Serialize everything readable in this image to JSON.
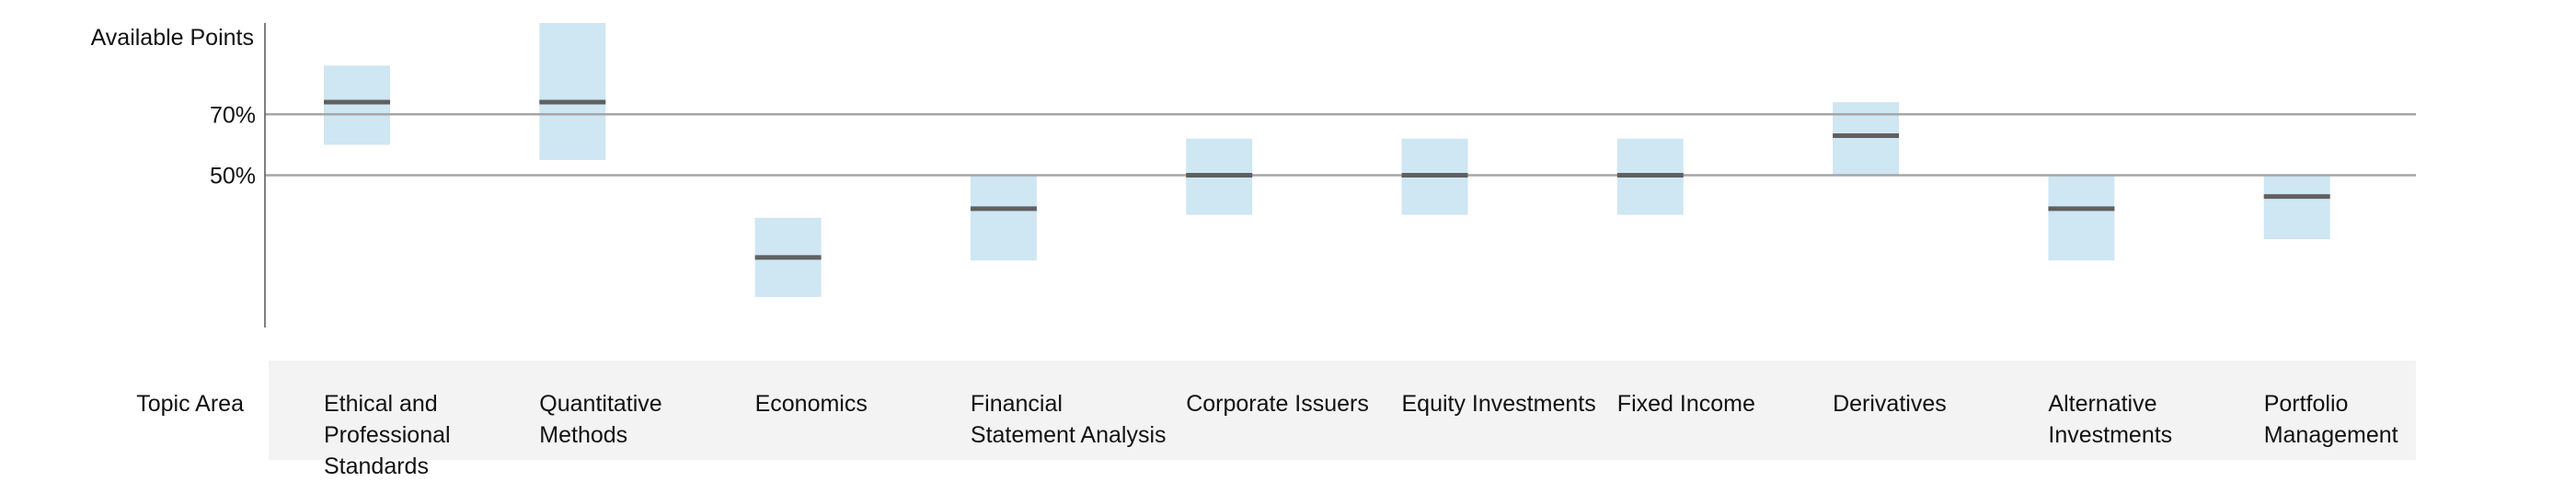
{
  "chart_data": {
    "type": "range-bar",
    "ylabel": "Available Points",
    "xlabel": "Topic Area",
    "y_reference_lines": [
      50,
      70
    ],
    "y_tick_labels": [
      "50%",
      "70%"
    ],
    "ylim": [
      0,
      100
    ],
    "colors": {
      "range": "#cfe6f3",
      "marker": "#606060",
      "reference": "#a6a6a6",
      "axis": "#555555"
    },
    "categories": [
      "Ethical and Professional Standards",
      "Quantitative Methods",
      "Economics",
      "Financial Statement Analysis",
      "Corporate Issuers",
      "Equity Investments",
      "Fixed Income",
      "Derivatives",
      "Alternative Investments",
      "Portfolio Management"
    ],
    "series": [
      {
        "low": [
          60,
          55,
          10,
          22,
          37,
          37,
          37,
          50,
          22,
          29
        ],
        "high": [
          86,
          100,
          36,
          50,
          62,
          62,
          62,
          74,
          50,
          50
        ],
        "mid": [
          74,
          74,
          23,
          39,
          50,
          50,
          50,
          63,
          39,
          43
        ]
      }
    ]
  }
}
